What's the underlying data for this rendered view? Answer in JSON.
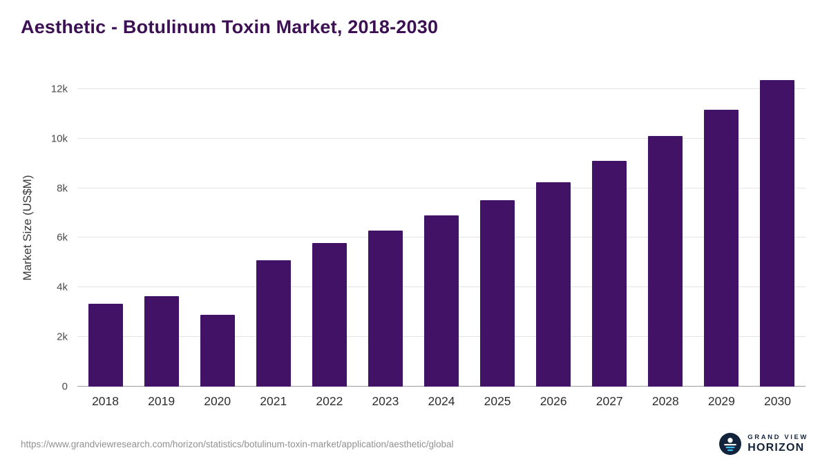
{
  "title": "Aesthetic - Botulinum Toxin Market, 2018-2030",
  "chart_data": {
    "type": "bar",
    "title": "Aesthetic - Botulinum Toxin Market, 2018-2030",
    "categories": [
      "2018",
      "2019",
      "2020",
      "2021",
      "2022",
      "2023",
      "2024",
      "2025",
      "2026",
      "2027",
      "2028",
      "2029",
      "2030"
    ],
    "values": [
      3350,
      3650,
      2900,
      5100,
      5800,
      6300,
      6900,
      7500,
      8250,
      9100,
      10100,
      11150,
      12350
    ],
    "xlabel": "",
    "ylabel": "Market Size (US$M)",
    "ylim": [
      0,
      12800
    ],
    "yticks": [
      0,
      2000,
      4000,
      6000,
      8000,
      10000,
      12000
    ],
    "ytick_labels": [
      "0",
      "2k",
      "4k",
      "6k",
      "8k",
      "10k",
      "12k"
    ],
    "grid": true,
    "legend": false,
    "bar_color": "#411266"
  },
  "colors": {
    "title": "#3c1053",
    "bar": "#411266",
    "gridline": "#e4e4e4",
    "axis_baseline": "#9a9a9a",
    "logo_navy": "#14233c",
    "logo_cyan": "#39c1ef"
  },
  "footer": {
    "source_url": "https://www.grandviewresearch.com/horizon/statistics/botulinum-toxin-market/application/aesthetic/global",
    "logo": {
      "top": "GRAND VIEW",
      "bottom": "HORIZON"
    }
  }
}
